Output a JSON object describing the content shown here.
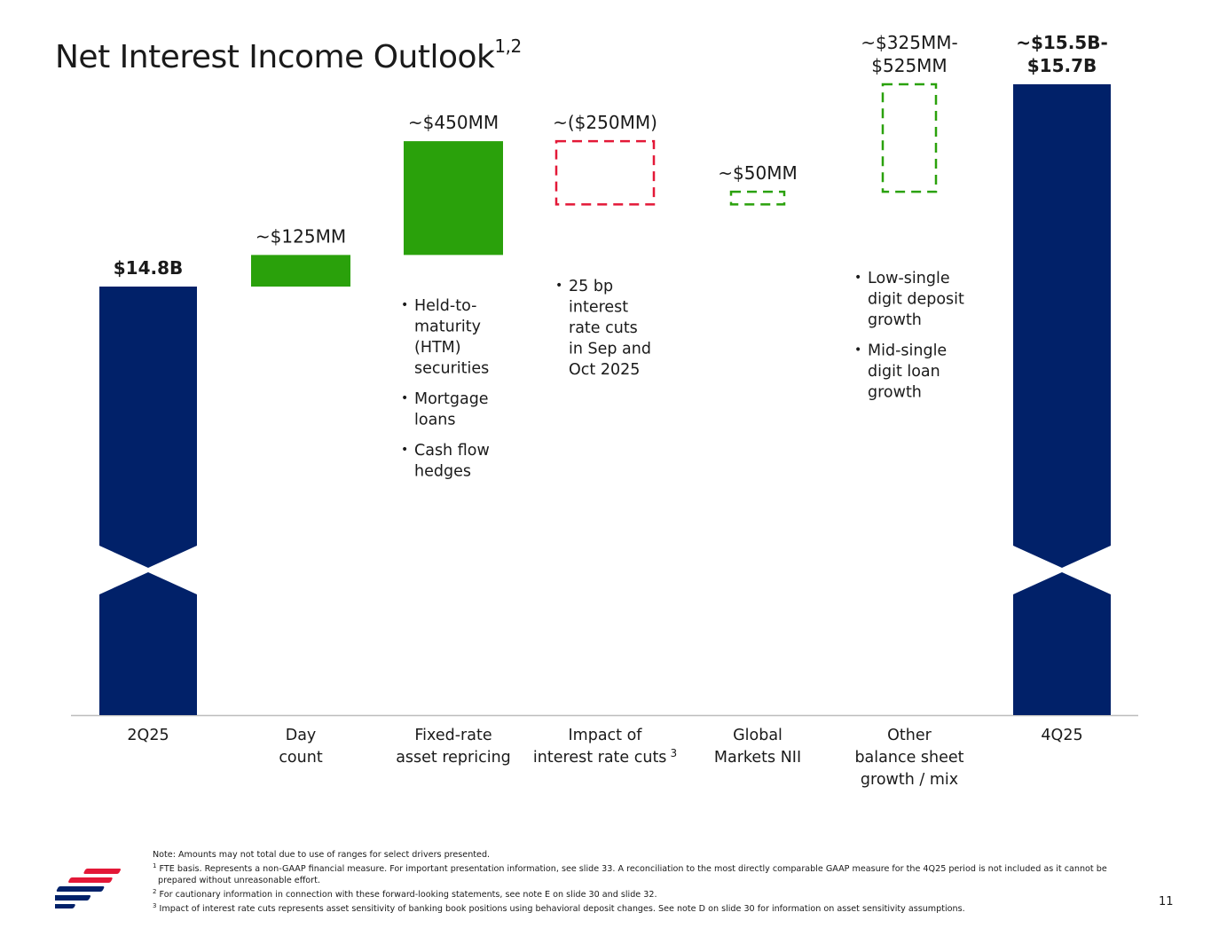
{
  "title": {
    "text": "Net Interest Income Outlook",
    "superscript": "1,2"
  },
  "colors": {
    "navy": "#012169",
    "green": "#2aa10b",
    "red": "#e31837",
    "axis": "#bdbdbd"
  },
  "chart_data": {
    "type": "bar",
    "categories": [
      {
        "id": "2q25",
        "lines": [
          "2Q25"
        ],
        "sup": ""
      },
      {
        "id": "day-count",
        "lines": [
          "Day",
          "count"
        ],
        "sup": ""
      },
      {
        "id": "fixed-rate",
        "lines": [
          "Fixed-rate",
          "asset repricing"
        ],
        "sup": ""
      },
      {
        "id": "rate-cuts",
        "lines": [
          "Impact of",
          "interest rate cuts"
        ],
        "sup": "3"
      },
      {
        "id": "global-markets",
        "lines": [
          "Global",
          "Markets NII"
        ],
        "sup": ""
      },
      {
        "id": "other",
        "lines": [
          "Other",
          "balance sheet",
          "growth / mix"
        ],
        "sup": ""
      },
      {
        "id": "4q25",
        "lines": [
          "4Q25"
        ],
        "sup": ""
      }
    ],
    "axis_break": true,
    "bars": [
      {
        "category": "2q25",
        "kind": "total",
        "start": 0,
        "end": 14.8,
        "label": [
          "$14.8B"
        ],
        "bold": true,
        "bullets": []
      },
      {
        "category": "day-count",
        "kind": "increase",
        "start": 14.8,
        "end": 14.925,
        "label": [
          "~$125MM"
        ],
        "bold": false,
        "bullets": []
      },
      {
        "category": "fixed-rate",
        "kind": "increase",
        "start": 14.925,
        "end": 15.375,
        "label": [
          "~$450MM"
        ],
        "bold": false,
        "bullets": [
          [
            "Held-to-",
            "maturity",
            "(HTM)",
            "securities"
          ],
          [
            "Mortgage",
            "loans"
          ],
          [
            "Cash flow",
            "hedges"
          ]
        ]
      },
      {
        "category": "rate-cuts",
        "kind": "decrease-range",
        "start": 15.375,
        "end": 15.125,
        "label": [
          "~($250MM)"
        ],
        "bold": false,
        "bullets": [
          [
            "25 bp",
            "interest",
            "rate cuts",
            "in Sep and",
            "Oct 2025"
          ]
        ]
      },
      {
        "category": "global-markets",
        "kind": "increase-range",
        "start": 15.125,
        "end": 15.175,
        "label": [
          "~$50MM"
        ],
        "bold": false,
        "bullets": []
      },
      {
        "category": "other",
        "kind": "increase-range",
        "start": 15.175,
        "end": 15.6,
        "label": [
          "~$325MM-",
          "$525MM"
        ],
        "bold": false,
        "bullets": [
          [
            "Low-single",
            "digit deposit",
            "growth"
          ],
          [
            "Mid-single",
            "digit loan",
            "growth"
          ]
        ]
      },
      {
        "category": "4q25",
        "kind": "total",
        "start": 0,
        "end": 15.6,
        "label": [
          "~$15.5B-",
          "$15.7B"
        ],
        "bold": true,
        "bullets": []
      }
    ],
    "xlabel": "",
    "ylabel": ""
  },
  "notes": {
    "intro": "Note: Amounts may not total due to use of ranges for select drivers presented.",
    "footnotes": [
      {
        "num": "1",
        "text": "FTE basis. Represents a non-GAAP financial measure. For important presentation information, see slide 33. A reconciliation to the most directly comparable GAAP measure for the 4Q25 period is not included as it cannot be prepared without unreasonable effort."
      },
      {
        "num": "2",
        "text": "For cautionary information in connection with these forward-looking statements, see note E on slide 30 and slide 32."
      },
      {
        "num": "3",
        "text": "Impact of interest rate cuts represents asset sensitivity of banking book positions using behavioral deposit changes. See note D on slide 30 for information on asset sensitivity assumptions."
      }
    ]
  },
  "page_number": "11",
  "logo": {
    "icon": "bank-flag-logo-icon"
  }
}
